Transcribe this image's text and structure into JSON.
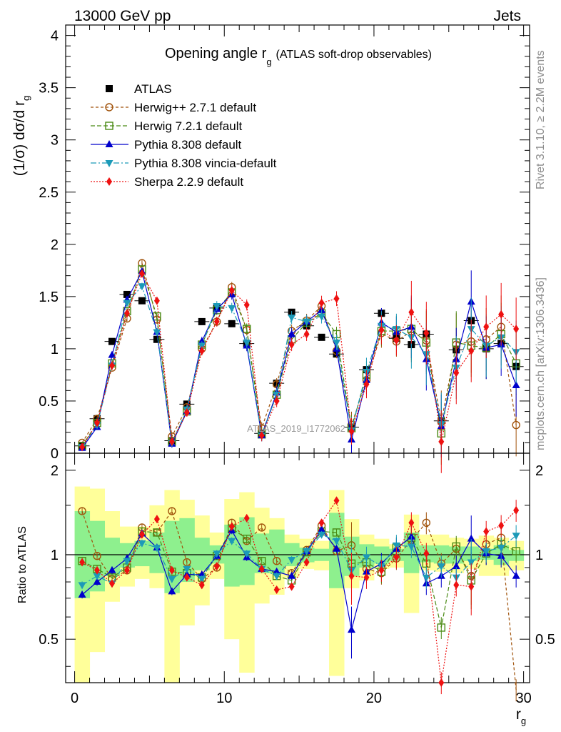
{
  "header": {
    "left": "13000 GeV pp",
    "right": "Jets"
  },
  "side_labels": {
    "rivet": "Rivet 3.1.10, ≥ 2.2M events",
    "mcplots": "mcplots.cern.ch [arXiv:1306.3436]"
  },
  "watermark": "ATLAS_2019_I1772062",
  "chart_data": [
    {
      "type": "line",
      "panel": "main",
      "title_main": "Opening angle r",
      "title_sub": "g",
      "title_rest": "(ATLAS soft-drop observables)",
      "ylabel": "(1/σ) dσ/d r",
      "ylabel_sub": "g",
      "ylim": [
        0,
        4.1
      ],
      "yticks": [
        0,
        0.5,
        1,
        1.5,
        2,
        2.5,
        3,
        3.5,
        4
      ],
      "ytick_labels": [
        "0",
        "0.5",
        "1",
        "1.5",
        "2",
        "2.5",
        "3",
        "3.5",
        "4"
      ],
      "xlim": [
        -0.6,
        30.4
      ],
      "x": [
        0.5,
        1.5,
        2.5,
        3.5,
        4.5,
        5.5,
        6.5,
        7.5,
        8.5,
        9.5,
        10.5,
        11.5,
        12.5,
        13.5,
        14.5,
        15.5,
        16.5,
        17.5,
        18.5,
        19.5,
        20.5,
        21.5,
        22.5,
        23.5,
        24.5,
        25.5,
        26.5,
        27.5,
        28.5,
        29.5
      ],
      "series": [
        {
          "name": "ATLAS",
          "color": "#000000",
          "style": "data",
          "values": [
            0.07,
            0.33,
            1.07,
            1.52,
            1.46,
            1.09,
            0.12,
            0.47,
            1.26,
            1.39,
            1.24,
            1.05,
            0.19,
            0.67,
            1.35,
            1.22,
            1.11,
            0.95,
            0.25,
            0.8,
            1.34,
            1.1,
            1.04,
            1.14,
            0.31,
            0.99,
            1.27,
            1.0,
            1.05,
            0.83
          ]
        },
        {
          "name": "Herwig++ 2.7.1 default",
          "color": "#a0520a",
          "style": "circle",
          "values": [
            0.1,
            0.33,
            0.82,
            1.29,
            1.82,
            1.28,
            0.16,
            0.44,
            1.0,
            1.26,
            1.59,
            1.18,
            0.24,
            0.66,
            1.17,
            1.27,
            1.41,
            0.98,
            0.27,
            0.7,
            1.15,
            1.07,
            1.17,
            1.08,
            0.3,
            1.04,
            1.07,
            1.09,
            1.21,
            0.27
          ]
        },
        {
          "name": "Herwig 7.2.1 default",
          "color": "#4a8a14",
          "style": "square",
          "values": [
            0.07,
            0.29,
            0.86,
            1.36,
            1.76,
            1.31,
            0.11,
            0.4,
            1.04,
            1.37,
            1.54,
            1.19,
            0.18,
            0.56,
            1.09,
            1.25,
            1.34,
            1.14,
            0.24,
            0.75,
            1.17,
            1.17,
            1.19,
            1.06,
            0.19,
            1.06,
            1.03,
            1.01,
            1.14,
            0.86
          ]
        },
        {
          "name": "Pythia 8.308 default",
          "color": "#0000cc",
          "style": "triangle-up",
          "values": [
            0.05,
            0.25,
            0.94,
            1.47,
            1.74,
            1.16,
            0.09,
            0.4,
            1.07,
            1.38,
            1.52,
            1.03,
            0.17,
            0.58,
            1.14,
            1.26,
            1.37,
            1.0,
            0.13,
            0.7,
            1.25,
            1.16,
            1.21,
            0.9,
            0.26,
            0.9,
            1.45,
            1.01,
            1.04,
            0.65
          ]
        },
        {
          "name": "Pythia 8.308 vincia-default",
          "color": "#1c9ab8",
          "style": "triangle-down",
          "values": [
            0.06,
            0.27,
            0.84,
            1.44,
            1.6,
            1.16,
            0.1,
            0.42,
            1.03,
            1.41,
            1.39,
            1.06,
            0.17,
            0.56,
            1.3,
            1.26,
            1.31,
            1.06,
            0.22,
            0.78,
            1.22,
            1.19,
            1.11,
            0.95,
            0.28,
            0.82,
            1.19,
            1.03,
            1.11,
            0.97
          ]
        },
        {
          "name": "Sherpa 2.2.9 default",
          "color": "#ee1111",
          "style": "diamond",
          "values": [
            0.06,
            0.29,
            0.84,
            1.34,
            1.72,
            1.46,
            0.11,
            0.39,
            0.98,
            1.26,
            1.56,
            1.42,
            0.17,
            0.5,
            1.04,
            1.14,
            1.44,
            1.48,
            0.21,
            0.66,
            1.18,
            1.08,
            1.35,
            1.15,
            0.11,
            0.77,
            0.98,
            1.21,
            1.33,
            1.19
          ]
        }
      ]
    },
    {
      "type": "line",
      "panel": "ratio",
      "ylabel": "Ratio to ATLAS",
      "ylim": [
        0.35,
        2.3
      ],
      "yticks": [
        0.5,
        1,
        2
      ],
      "ytick_labels": [
        "0.5",
        "1",
        "2"
      ],
      "xlim": [
        -0.6,
        30.4
      ],
      "xticks": [
        0,
        10,
        20,
        30
      ],
      "xtick_labels": [
        "0",
        "10",
        "20",
        "30"
      ],
      "xlabel": "r",
      "xlabel_sub": "g",
      "band_green": [
        [
          0.7,
          1.43
        ],
        [
          0.74,
          1.32
        ],
        [
          0.84,
          1.15
        ],
        [
          0.9,
          1.1
        ],
        [
          0.91,
          1.12
        ],
        [
          0.86,
          1.2
        ],
        [
          0.73,
          1.32
        ],
        [
          0.8,
          1.35
        ],
        [
          0.88,
          1.15
        ],
        [
          0.93,
          1.08
        ],
        [
          0.77,
          1.28
        ],
        [
          0.78,
          1.36
        ],
        [
          0.86,
          1.19
        ],
        [
          0.86,
          1.23
        ],
        [
          0.91,
          1.1
        ],
        [
          0.94,
          1.06
        ],
        [
          0.95,
          1.05
        ],
        [
          0.76,
          1.41
        ],
        [
          0.84,
          1.16
        ],
        [
          0.9,
          1.09
        ],
        [
          0.93,
          1.07
        ],
        [
          0.95,
          1.05
        ],
        [
          0.86,
          1.2
        ],
        [
          0.94,
          1.08
        ],
        [
          0.93,
          1.08
        ],
        [
          0.93,
          1.07
        ],
        [
          0.95,
          1.07
        ],
        [
          0.96,
          1.05
        ],
        [
          0.92,
          1.08
        ],
        [
          0.95,
          1.04
        ]
      ],
      "band_yellow": [
        [
          0.35,
          1.75
        ],
        [
          0.45,
          1.72
        ],
        [
          0.68,
          1.43
        ],
        [
          0.77,
          1.26
        ],
        [
          0.82,
          1.26
        ],
        [
          0.76,
          1.5
        ],
        [
          0.35,
          1.7
        ],
        [
          0.56,
          1.57
        ],
        [
          0.66,
          1.38
        ],
        [
          0.82,
          1.2
        ],
        [
          0.5,
          1.58
        ],
        [
          0.38,
          1.67
        ],
        [
          0.67,
          1.47
        ],
        [
          0.72,
          1.35
        ],
        [
          0.83,
          1.18
        ],
        [
          0.89,
          1.14
        ],
        [
          0.88,
          1.12
        ],
        [
          0.37,
          1.7
        ],
        [
          0.76,
          1.34
        ],
        [
          0.81,
          1.18
        ],
        [
          0.89,
          1.14
        ],
        [
          0.9,
          1.09
        ],
        [
          0.62,
          1.39
        ],
        [
          0.88,
          1.18
        ],
        [
          0.87,
          1.18
        ],
        [
          0.86,
          1.15
        ],
        [
          0.89,
          1.14
        ],
        [
          0.84,
          1.17
        ],
        [
          0.84,
          1.15
        ],
        [
          0.88,
          1.12
        ]
      ],
      "series": [
        {
          "name": "Herwig++ 2.7.1 default",
          "values": [
            1.43,
            0.99,
            0.82,
            0.88,
            1.25,
            1.2,
            1.43,
            0.94,
            0.82,
            0.9,
            1.3,
            1.12,
            1.25,
            0.95,
            0.86,
            1.04,
            1.27,
            1.03,
            1.08,
            0.89,
            0.86,
            0.97,
            1.13,
            1.3,
            0.93,
            1.05,
            0.84,
            1.09,
            1.15,
            0.33
          ]
        },
        {
          "name": "Herwig 7.2.1 default",
          "values": [
            0.95,
            0.89,
            0.83,
            0.9,
            1.21,
            1.2,
            0.87,
            0.86,
            0.83,
            0.99,
            1.24,
            1.14,
            0.95,
            0.84,
            0.81,
            1.02,
            1.21,
            1.2,
            0.93,
            0.94,
            0.87,
            1.06,
            1.15,
            0.93,
            0.55,
            1.07,
            0.81,
            1.01,
            1.09,
            1.03
          ]
        },
        {
          "name": "Pythia 8.308 default",
          "values": [
            0.72,
            0.8,
            0.88,
            0.97,
            1.19,
            1.06,
            0.74,
            0.85,
            0.85,
            0.99,
            1.22,
            0.98,
            0.89,
            0.87,
            0.84,
            1.03,
            1.23,
            1.05,
            0.54,
            0.87,
            0.93,
            1.05,
            1.16,
            0.79,
            0.84,
            0.91,
            1.14,
            1.01,
            0.99,
            0.84
          ]
        },
        {
          "name": "Pythia 8.308 vincia-default",
          "values": [
            0.78,
            0.84,
            0.79,
            0.95,
            1.1,
            1.06,
            0.82,
            0.89,
            0.82,
            1.01,
            1.12,
            1.01,
            0.89,
            0.84,
            0.96,
            1.03,
            1.18,
            1.12,
            0.88,
            0.98,
            0.91,
            1.08,
            1.07,
            0.83,
            0.91,
            0.83,
            0.94,
            1.03,
            1.06,
            1.17
          ]
        },
        {
          "name": "Sherpa 2.2.9 default",
          "values": [
            0.94,
            0.88,
            0.79,
            0.88,
            1.18,
            1.34,
            0.88,
            0.83,
            0.78,
            0.91,
            1.26,
            1.35,
            0.89,
            0.75,
            0.77,
            0.94,
            1.3,
            1.56,
            0.84,
            0.83,
            0.88,
            0.98,
            1.3,
            1.01,
            0.35,
            0.78,
            0.77,
            1.21,
            1.27,
            1.44
          ]
        }
      ]
    }
  ]
}
